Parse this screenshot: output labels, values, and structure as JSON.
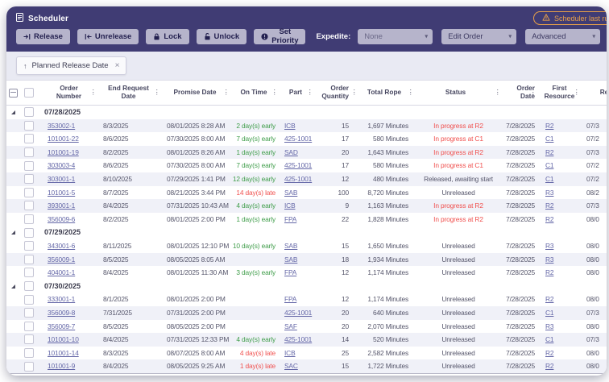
{
  "window": {
    "title": "Scheduler",
    "warning_badge": "Scheduler last run a"
  },
  "colors": {
    "accent": "#403C74",
    "warning": "#E8A049",
    "early": "#3F9D4A",
    "late": "#F0504E",
    "link": "#6467A7"
  },
  "toolbar": {
    "buttons": [
      {
        "label": "Release",
        "icon": "release-icon"
      },
      {
        "label": "Unrelease",
        "icon": "unrelease-icon"
      },
      {
        "label": "Lock",
        "icon": "lock-icon"
      },
      {
        "label": "Unlock",
        "icon": "unlock-icon"
      },
      {
        "label": "Set Priority",
        "icon": "priority-icon"
      }
    ],
    "expedite_label": "Expedite:",
    "dropdowns": [
      {
        "name": "expedite",
        "value": "None",
        "muted": true
      },
      {
        "name": "edit-order",
        "value": "Edit Order",
        "muted": false
      },
      {
        "name": "advanced",
        "value": "Advanced",
        "muted": false
      }
    ]
  },
  "filter": {
    "sort_chip": "Planned Release Date"
  },
  "table": {
    "columns": [
      "Order Number",
      "End Request Date",
      "Promise Date",
      "On Time",
      "Part",
      "Order Quantity",
      "Total Rope",
      "Status",
      "Order Date",
      "First Resource",
      "Re"
    ],
    "groups": [
      {
        "date": "07/28/2025",
        "rows": [
          {
            "order_number": "353002-1",
            "end_request_date": "8/3/2025",
            "promise_date": "08/01/2025 8:28 AM",
            "on_time": "2 day(s) early",
            "on_time_tone": "early",
            "part": "ICB",
            "order_quantity": "15",
            "total_rope": "1,697 Minutes",
            "status": "In progress at R2",
            "status_tone": "alert",
            "order_date": "7/28/2025",
            "first_resource": "R2",
            "re": "07/3"
          },
          {
            "order_number": "101001-22",
            "end_request_date": "8/6/2025",
            "promise_date": "07/30/2025 8:00 AM",
            "on_time": "7 day(s) early",
            "on_time_tone": "early",
            "part": "425-1001",
            "order_quantity": "17",
            "total_rope": "580 Minutes",
            "status": "In progress at C1",
            "status_tone": "alert",
            "order_date": "7/28/2025",
            "first_resource": "C1",
            "re": "07/2"
          },
          {
            "order_number": "101001-19",
            "end_request_date": "8/2/2025",
            "promise_date": "08/01/2025 8:26 AM",
            "on_time": "1 day(s) early",
            "on_time_tone": "early",
            "part": "SAD",
            "order_quantity": "20",
            "total_rope": "1,643 Minutes",
            "status": "In progress at R2",
            "status_tone": "alert",
            "order_date": "7/28/2025",
            "first_resource": "R2",
            "re": "07/3"
          },
          {
            "order_number": "303003-4",
            "end_request_date": "8/6/2025",
            "promise_date": "07/30/2025 8:00 AM",
            "on_time": "7 day(s) early",
            "on_time_tone": "early",
            "part": "425-1001",
            "order_quantity": "17",
            "total_rope": "580 Minutes",
            "status": "In progress at C1",
            "status_tone": "alert",
            "order_date": "7/28/2025",
            "first_resource": "C1",
            "re": "07/2"
          },
          {
            "order_number": "303001-1",
            "end_request_date": "8/10/2025",
            "promise_date": "07/29/2025 1:41 PM",
            "on_time": "12 day(s) early",
            "on_time_tone": "early",
            "part": "425-1001",
            "order_quantity": "12",
            "total_rope": "480 Minutes",
            "status": "Released, awaiting start",
            "status_tone": "normal",
            "order_date": "7/28/2025",
            "first_resource": "C1",
            "re": "07/2"
          },
          {
            "order_number": "101001-5",
            "end_request_date": "8/7/2025",
            "promise_date": "08/21/2025 3:44 PM",
            "on_time": "14 day(s) late",
            "on_time_tone": "late",
            "part": "SAB",
            "order_quantity": "100",
            "total_rope": "8,720 Minutes",
            "status": "Unreleased",
            "status_tone": "normal",
            "order_date": "7/28/2025",
            "first_resource": "R3",
            "re": "08/2"
          },
          {
            "order_number": "393001-1",
            "end_request_date": "8/4/2025",
            "promise_date": "07/31/2025 10:43 AM",
            "on_time": "4 day(s) early",
            "on_time_tone": "early",
            "part": "ICB",
            "order_quantity": "9",
            "total_rope": "1,163 Minutes",
            "status": "In progress at R2",
            "status_tone": "alert",
            "order_date": "7/28/2025",
            "first_resource": "R2",
            "re": "07/3"
          },
          {
            "order_number": "356009-6",
            "end_request_date": "8/2/2025",
            "promise_date": "08/01/2025 2:00 PM",
            "on_time": "1 day(s) early",
            "on_time_tone": "early",
            "part": "FPA",
            "order_quantity": "22",
            "total_rope": "1,828 Minutes",
            "status": "In progress at R2",
            "status_tone": "alert",
            "order_date": "7/28/2025",
            "first_resource": "R2",
            "re": "08/0"
          }
        ]
      },
      {
        "date": "07/29/2025",
        "rows": [
          {
            "order_number": "343001-6",
            "end_request_date": "8/11/2025",
            "promise_date": "08/01/2025 12:10 PM",
            "on_time": "10 day(s) early",
            "on_time_tone": "early",
            "part": "SAB",
            "order_quantity": "15",
            "total_rope": "1,650 Minutes",
            "status": "Unreleased",
            "status_tone": "normal",
            "order_date": "7/28/2025",
            "first_resource": "R3",
            "re": "08/0"
          },
          {
            "order_number": "356009-1",
            "end_request_date": "8/5/2025",
            "promise_date": "08/05/2025 8:05 AM",
            "on_time": "",
            "on_time_tone": "",
            "part": "SAB",
            "order_quantity": "18",
            "total_rope": "1,934 Minutes",
            "status": "Unreleased",
            "status_tone": "normal",
            "order_date": "7/28/2025",
            "first_resource": "R3",
            "re": "08/0"
          },
          {
            "order_number": "404001-1",
            "end_request_date": "8/4/2025",
            "promise_date": "08/01/2025 11:30 AM",
            "on_time": "3 day(s) early",
            "on_time_tone": "early",
            "part": "FPA",
            "order_quantity": "12",
            "total_rope": "1,174 Minutes",
            "status": "Unreleased",
            "status_tone": "normal",
            "order_date": "7/28/2025",
            "first_resource": "R2",
            "re": "08/0"
          }
        ]
      },
      {
        "date": "07/30/2025",
        "rows": [
          {
            "order_number": "333001-1",
            "end_request_date": "8/1/2025",
            "promise_date": "08/01/2025 2:00 PM",
            "on_time": "",
            "on_time_tone": "",
            "part": "FPA",
            "order_quantity": "12",
            "total_rope": "1,174 Minutes",
            "status": "Unreleased",
            "status_tone": "normal",
            "order_date": "7/28/2025",
            "first_resource": "R2",
            "re": "08/0"
          },
          {
            "order_number": "356009-8",
            "end_request_date": "7/31/2025",
            "promise_date": "07/31/2025 2:00 PM",
            "on_time": "",
            "on_time_tone": "",
            "part": "425-1001",
            "order_quantity": "20",
            "total_rope": "640 Minutes",
            "status": "Unreleased",
            "status_tone": "normal",
            "order_date": "7/28/2025",
            "first_resource": "C1",
            "re": "07/3"
          },
          {
            "order_number": "356009-7",
            "end_request_date": "8/5/2025",
            "promise_date": "08/05/2025 2:00 PM",
            "on_time": "",
            "on_time_tone": "",
            "part": "SAF",
            "order_quantity": "20",
            "total_rope": "2,070 Minutes",
            "status": "Unreleased",
            "status_tone": "normal",
            "order_date": "7/28/2025",
            "first_resource": "R3",
            "re": "08/0"
          },
          {
            "order_number": "101001-10",
            "end_request_date": "8/4/2025",
            "promise_date": "07/31/2025 12:33 PM",
            "on_time": "4 day(s) early",
            "on_time_tone": "early",
            "part": "425-1001",
            "order_quantity": "14",
            "total_rope": "520 Minutes",
            "status": "Unreleased",
            "status_tone": "normal",
            "order_date": "7/28/2025",
            "first_resource": "C1",
            "re": "07/3"
          },
          {
            "order_number": "101001-14",
            "end_request_date": "8/3/2025",
            "promise_date": "08/07/2025 8:00 AM",
            "on_time": "4 day(s) late",
            "on_time_tone": "late",
            "part": "ICB",
            "order_quantity": "25",
            "total_rope": "2,582 Minutes",
            "status": "Unreleased",
            "status_tone": "normal",
            "order_date": "7/28/2025",
            "first_resource": "R2",
            "re": "08/0"
          },
          {
            "order_number": "101001-9",
            "end_request_date": "8/4/2025",
            "promise_date": "08/05/2025 9:25 AM",
            "on_time": "1 day(s) late",
            "on_time_tone": "late",
            "part": "SAC",
            "order_quantity": "15",
            "total_rope": "1,722 Minutes",
            "status": "Unreleased",
            "status_tone": "normal",
            "order_date": "7/28/2025",
            "first_resource": "R2",
            "re": "08/0"
          }
        ]
      }
    ]
  }
}
